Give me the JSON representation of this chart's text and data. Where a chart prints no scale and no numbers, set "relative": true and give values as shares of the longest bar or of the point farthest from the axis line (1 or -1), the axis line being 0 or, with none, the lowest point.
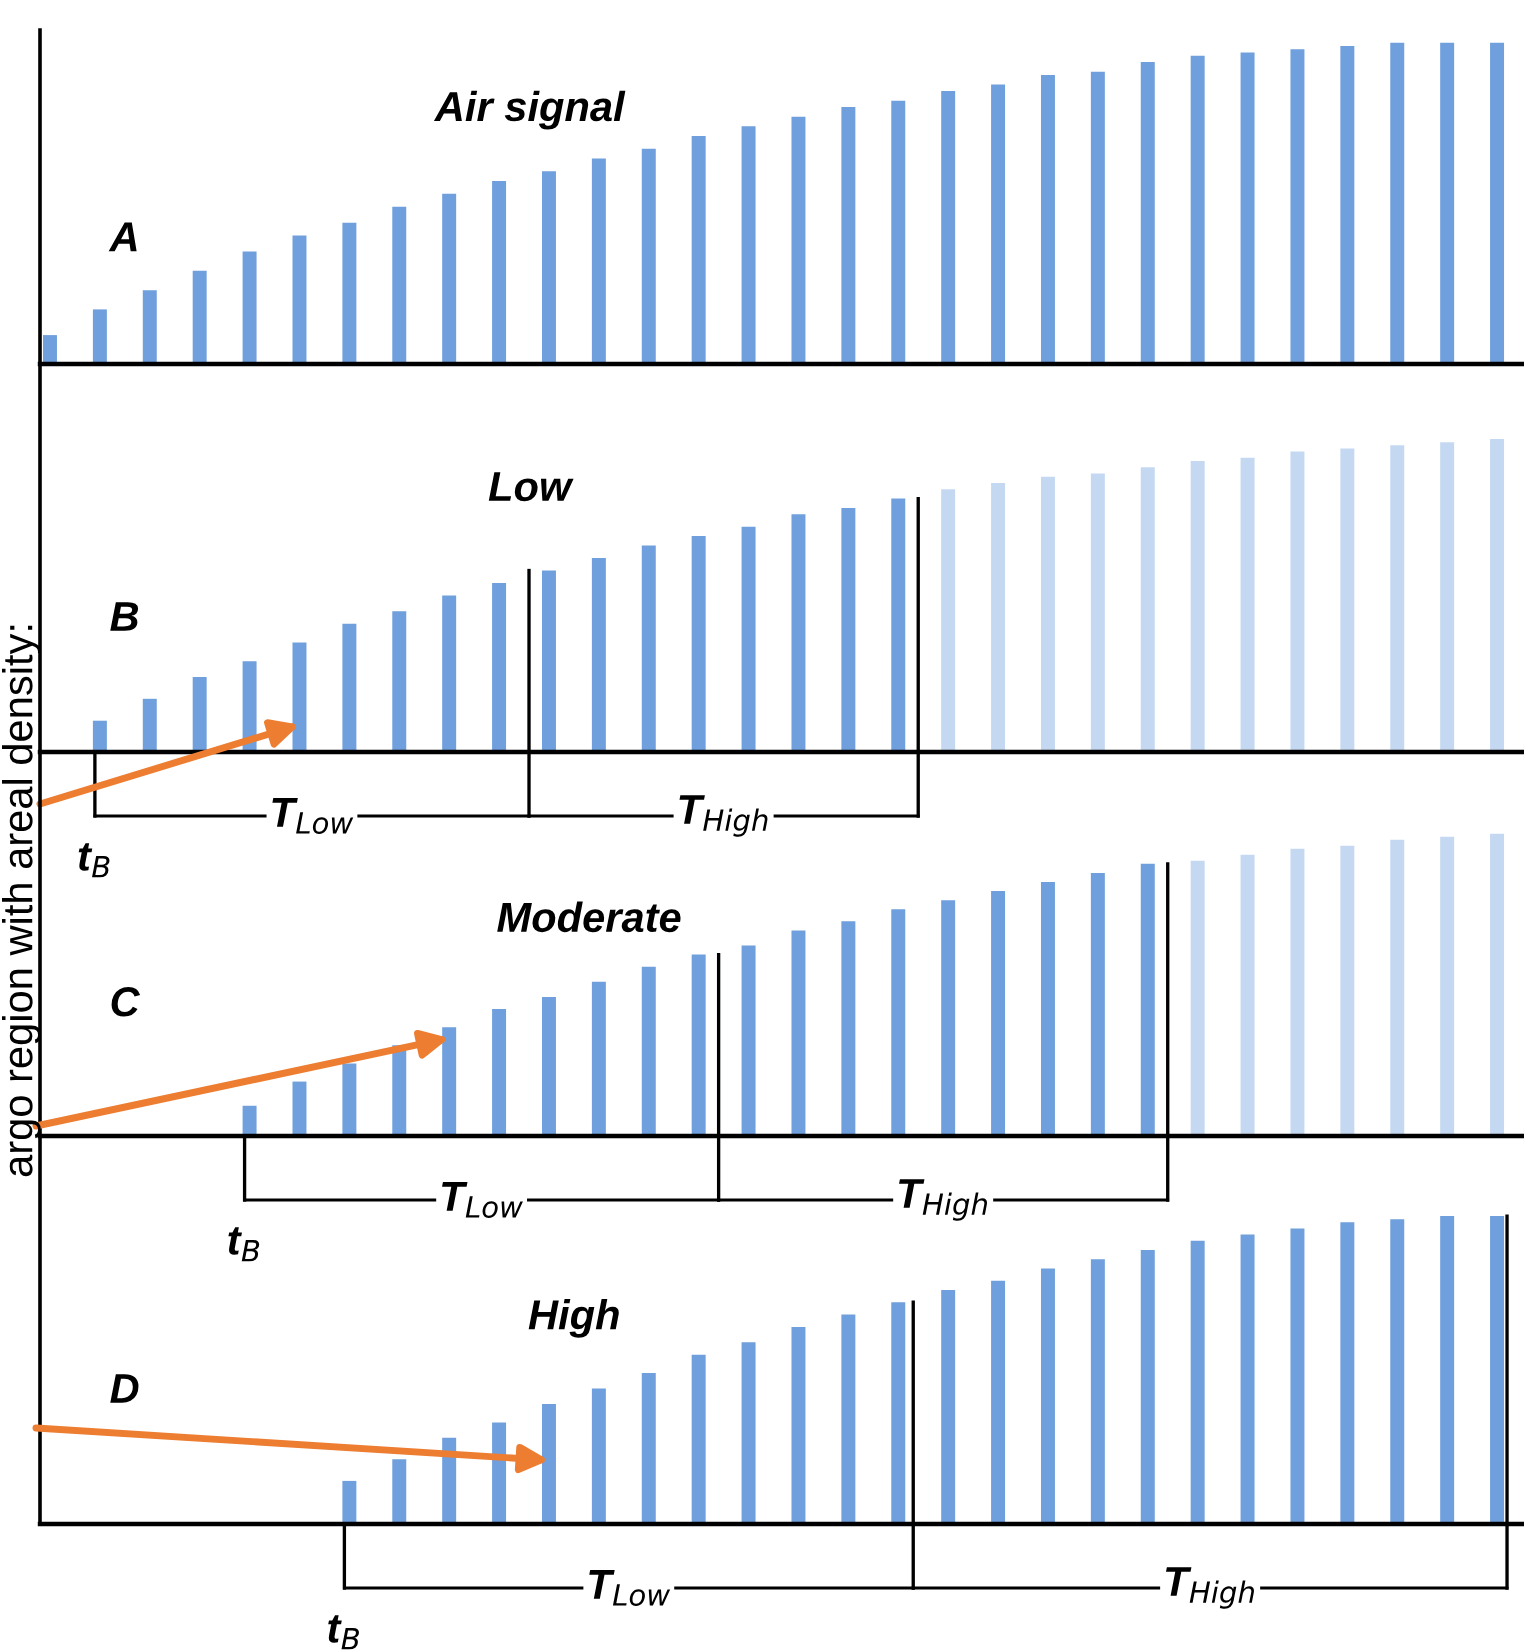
{
  "chart_data": [
    {
      "type": "bar",
      "title": "Air signal",
      "relative": true,
      "categories": [
        null,
        null,
        null,
        null,
        null,
        null,
        null,
        null,
        null,
        null,
        null,
        null,
        null,
        null,
        null,
        null,
        null,
        null,
        null,
        null,
        null,
        null,
        null,
        null,
        null,
        null,
        null,
        null,
        null,
        null
      ],
      "values": [
        0.09,
        0.17,
        0.23,
        0.29,
        0.35,
        0.4,
        0.44,
        0.49,
        0.53,
        0.57,
        0.6,
        0.64,
        0.67,
        0.71,
        0.74,
        0.77,
        0.8,
        0.82,
        0.85,
        0.87,
        0.9,
        0.91,
        0.94,
        0.96,
        0.97,
        0.98,
        0.99,
        1,
        1,
        1
      ],
      "colors": [
        "#6f9fdc",
        "#6f9fdc",
        "#6f9fdc",
        "#6f9fdc",
        "#6f9fdc",
        "#6f9fdc",
        "#6f9fdc",
        "#6f9fdc",
        "#6f9fdc",
        "#6f9fdc",
        "#6f9fdc",
        "#6f9fdc",
        "#6f9fdc",
        "#6f9fdc",
        "#6f9fdc",
        "#6f9fdc",
        "#6f9fdc",
        "#6f9fdc",
        "#6f9fdc",
        "#6f9fdc",
        "#6f9fdc",
        "#6f9fdc",
        "#6f9fdc",
        "#6f9fdc",
        "#6f9fdc",
        "#6f9fdc",
        "#6f9fdc",
        "#6f9fdc",
        "#6f9fdc",
        "#6f9fdc"
      ],
      "annotations": [
        "A"
      ]
    },
    {
      "type": "bar",
      "title": "Low",
      "relative": true,
      "categories": [
        null,
        null,
        null,
        null,
        null,
        null,
        null,
        null,
        null,
        null,
        null,
        null,
        null,
        null,
        null,
        null,
        null,
        null,
        null,
        null,
        null,
        null,
        null,
        null,
        null,
        null,
        null,
        null,
        null,
        null
      ],
      "values": [
        null,
        0.1,
        0.17,
        0.24,
        0.29,
        0.35,
        0.41,
        0.45,
        0.5,
        0.54,
        0.58,
        0.62,
        0.66,
        0.69,
        0.72,
        0.76,
        0.78,
        0.81,
        0.84,
        0.86,
        0.88,
        0.89,
        0.91,
        0.93,
        0.94,
        0.96,
        0.97,
        0.98,
        0.99,
        1
      ],
      "colors": [
        null,
        "#6f9fdc",
        "#6f9fdc",
        "#6f9fdc",
        "#6f9fdc",
        "#6f9fdc",
        "#6f9fdc",
        "#6f9fdc",
        "#6f9fdc",
        "#6f9fdc",
        "#6f9fdc",
        "#6f9fdc",
        "#6f9fdc",
        "#6f9fdc",
        "#6f9fdc",
        "#6f9fdc",
        "#6f9fdc",
        "#6f9fdc",
        "#c5d8f1",
        "#c5d8f1",
        "#c5d8f1",
        "#c5d8f1",
        "#c5d8f1",
        "#c5d8f1",
        "#c5d8f1",
        "#c5d8f1",
        "#c5d8f1",
        "#c5d8f1",
        "#c5d8f1",
        "#c5d8f1"
      ],
      "annotations": [
        "B",
        "t$_{B}$",
        "T$_{Low}$",
        "T$_{High}$"
      ]
    },
    {
      "type": "bar",
      "title": "Moderate",
      "relative": true,
      "ylabel": "argo region with areal density:",
      "categories": [
        null,
        null,
        null,
        null,
        null,
        null,
        null,
        null,
        null,
        null,
        null,
        null,
        null,
        null,
        null,
        null,
        null,
        null,
        null,
        null,
        null,
        null,
        null,
        null,
        null,
        null,
        null,
        null,
        null,
        null
      ],
      "values": [
        null,
        null,
        null,
        null,
        0.1,
        0.18,
        0.24,
        0.3,
        0.36,
        0.42,
        0.46,
        0.51,
        0.56,
        0.6,
        0.63,
        0.68,
        0.71,
        0.75,
        0.78,
        0.81,
        0.84,
        0.87,
        0.9,
        0.91,
        0.93,
        0.95,
        0.96,
        0.98,
        0.99,
        1
      ],
      "colors": [
        null,
        null,
        null,
        null,
        "#6f9fdc",
        "#6f9fdc",
        "#6f9fdc",
        "#6f9fdc",
        "#6f9fdc",
        "#6f9fdc",
        "#6f9fdc",
        "#6f9fdc",
        "#6f9fdc",
        "#6f9fdc",
        "#6f9fdc",
        "#6f9fdc",
        "#6f9fdc",
        "#6f9fdc",
        "#6f9fdc",
        "#6f9fdc",
        "#6f9fdc",
        "#6f9fdc",
        "#6f9fdc",
        "#c5d8f1",
        "#c5d8f1",
        "#c5d8f1",
        "#c5d8f1",
        "#c5d8f1",
        "#c5d8f1",
        "#c5d8f1"
      ],
      "annotations": [
        "C",
        "t$_{B}$",
        "T$_{Low}$",
        "T$_{High}$"
      ]
    },
    {
      "type": "bar",
      "title": "High",
      "relative": true,
      "categories": [
        null,
        null,
        null,
        null,
        null,
        null,
        null,
        null,
        null,
        null,
        null,
        null,
        null,
        null,
        null,
        null,
        null,
        null,
        null,
        null,
        null,
        null,
        null,
        null,
        null,
        null,
        null,
        null,
        null,
        null
      ],
      "values": [
        null,
        null,
        null,
        null,
        null,
        null,
        0.14,
        0.21,
        0.28,
        0.33,
        0.39,
        0.44,
        0.49,
        0.55,
        0.59,
        0.64,
        0.68,
        0.72,
        0.76,
        0.79,
        0.83,
        0.86,
        0.89,
        0.92,
        0.94,
        0.96,
        0.98,
        0.99,
        1,
        1
      ],
      "colors": [
        null,
        null,
        null,
        null,
        null,
        null,
        "#6f9fdc",
        "#6f9fdc",
        "#6f9fdc",
        "#6f9fdc",
        "#6f9fdc",
        "#6f9fdc",
        "#6f9fdc",
        "#6f9fdc",
        "#6f9fdc",
        "#6f9fdc",
        "#6f9fdc",
        "#6f9fdc",
        "#6f9fdc",
        "#6f9fdc",
        "#6f9fdc",
        "#6f9fdc",
        "#6f9fdc",
        "#6f9fdc",
        "#6f9fdc",
        "#6f9fdc",
        "#6f9fdc",
        "#6f9fdc",
        "#6f9fdc",
        "#6f9fdc"
      ],
      "annotations": [
        "D",
        "t$_{B}$",
        "T$_{Low}$",
        "T$_{High}$"
      ]
    }
  ]
}
